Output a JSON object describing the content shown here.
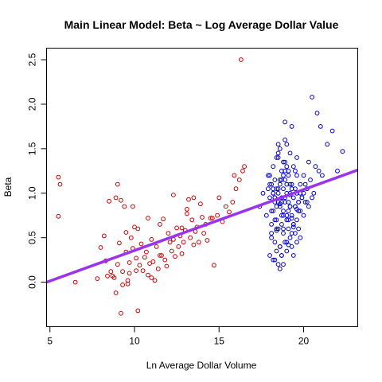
{
  "chart_data": {
    "type": "scatter",
    "title": "Main Linear Model: Beta ~ Log Average Dollar Value",
    "xlabel": "Ln Average Dollar Volume",
    "ylabel": "Beta",
    "xlim": [
      4.8,
      23.2
    ],
    "ylim": [
      -0.5,
      2.63
    ],
    "xticks": [
      5,
      10,
      15,
      20
    ],
    "yticks": [
      0.0,
      0.5,
      1.0,
      1.5,
      2.0,
      2.5
    ],
    "ytick_labels": [
      "0.0",
      "0.5",
      "1.0",
      "1.5",
      "2.0",
      "2.5"
    ],
    "grid": false,
    "legend": "none",
    "series": [
      {
        "color": "#cc0000",
        "marker": "open-circle",
        "x": [
          5.5,
          5.6,
          5.5,
          6.5,
          7.8,
          8.0,
          8.2,
          8.3,
          8.5,
          8.6,
          8.7,
          8.8,
          8.9,
          9.0,
          9.0,
          9.1,
          9.2,
          9.3,
          9.3,
          9.4,
          9.5,
          9.5,
          9.6,
          9.7,
          9.8,
          9.9,
          10.0,
          10.1,
          10.2,
          10.3,
          10.4,
          10.5,
          10.6,
          10.7,
          10.8,
          10.9,
          11.0,
          11.1,
          11.2,
          11.3,
          11.4,
          11.5,
          11.6,
          11.7,
          11.8,
          11.9,
          12.0,
          12.1,
          12.2,
          12.3,
          12.4,
          12.5,
          12.6,
          12.7,
          12.8,
          12.9,
          13.0,
          13.1,
          13.2,
          13.3,
          13.4,
          13.5,
          13.6,
          13.7,
          13.8,
          13.9,
          14.0,
          14.1,
          14.2,
          14.3,
          14.5,
          14.7,
          14.9,
          15.0,
          15.2,
          15.4,
          15.6,
          15.8,
          16.0,
          16.2,
          16.3,
          16.5,
          8.9,
          9.6,
          10.2,
          11.0,
          12.3,
          13.1,
          14.6,
          9.2,
          10.8,
          12.8,
          9.9,
          15.9,
          16.4,
          13.5,
          11.5,
          10.1,
          8.4,
          9.7
        ],
        "y": [
          1.18,
          1.1,
          0.74,
          0.0,
          0.04,
          0.39,
          0.52,
          0.24,
          0.91,
          0.12,
          0.07,
          0.05,
          0.95,
          1.1,
          0.2,
          0.44,
          -0.35,
          -0.03,
          0.12,
          0.85,
          0.34,
          0.56,
          0.02,
          0.1,
          0.5,
          0.38,
          0.62,
          0.27,
          0.6,
          0.19,
          0.43,
          0.13,
          0.28,
          0.34,
          0.08,
          0.21,
          0.48,
          0.23,
          0.02,
          0.4,
          0.15,
          0.65,
          0.3,
          0.71,
          0.25,
          0.18,
          0.55,
          0.45,
          0.35,
          0.48,
          0.29,
          0.61,
          0.4,
          0.52,
          0.32,
          0.45,
          0.58,
          0.77,
          0.93,
          0.5,
          0.7,
          0.42,
          0.57,
          0.62,
          0.45,
          0.88,
          0.73,
          0.55,
          0.65,
          0.47,
          0.72,
          0.19,
          0.75,
          0.95,
          0.68,
          0.85,
          0.79,
          0.9,
          1.05,
          1.15,
          2.5,
          1.3,
          -0.12,
          -0.02,
          -0.32,
          0.05,
          0.98,
          0.82,
          0.72,
          0.92,
          0.72,
          0.61,
          0.85,
          1.2,
          1.25,
          0.95,
          0.3,
          0.13,
          0.07,
          0.22
        ]
      },
      {
        "color": "#0000cc",
        "marker": "open-circle",
        "x": [
          17.4,
          17.6,
          17.8,
          17.9,
          18.0,
          18.0,
          18.1,
          18.1,
          18.2,
          18.2,
          18.2,
          18.3,
          18.3,
          18.3,
          18.4,
          18.4,
          18.4,
          18.5,
          18.5,
          18.5,
          18.5,
          18.6,
          18.6,
          18.6,
          18.6,
          18.7,
          18.7,
          18.7,
          18.7,
          18.8,
          18.8,
          18.8,
          18.8,
          18.9,
          18.9,
          18.9,
          18.9,
          19.0,
          19.0,
          19.0,
          19.0,
          19.1,
          19.1,
          19.1,
          19.2,
          19.2,
          19.2,
          19.3,
          19.3,
          19.3,
          19.4,
          19.4,
          19.5,
          19.5,
          19.6,
          19.6,
          19.7,
          19.7,
          19.8,
          19.8,
          19.9,
          20.0,
          20.0,
          20.1,
          20.2,
          20.3,
          20.4,
          20.5,
          20.7,
          20.9,
          21.1,
          21.4,
          21.7,
          22.0,
          22.3,
          18.0,
          18.1,
          18.3,
          18.4,
          18.5,
          18.6,
          18.7,
          18.8,
          18.9,
          19.0,
          19.1,
          19.2,
          19.3,
          19.4,
          19.5,
          19.6,
          19.7,
          19.8,
          18.2,
          18.4,
          18.6,
          18.8,
          19.0,
          19.2,
          19.4,
          19.6,
          19.8,
          20.0,
          20.2,
          18.3,
          18.5,
          18.7,
          18.9,
          19.1,
          19.3,
          19.5,
          17.9,
          18.1,
          18.3,
          18.5,
          18.7,
          18.9,
          19.1,
          19.3,
          19.5,
          19.7,
          19.9,
          20.1,
          20.3,
          18.0,
          18.2,
          18.4,
          18.6,
          18.8,
          19.0,
          19.2,
          19.4,
          19.6,
          18.1,
          18.3,
          18.5,
          18.7,
          18.9,
          19.1,
          19.3,
          18.2,
          18.6,
          19.0,
          19.4,
          18.4,
          18.8,
          19.2,
          19.6,
          20.5,
          20.8,
          21.0,
          20.6
        ],
        "y": [
          0.85,
          1.0,
          0.75,
          1.2,
          0.3,
          0.95,
          0.5,
          1.1,
          0.25,
          0.8,
          1.3,
          0.45,
          0.9,
          1.15,
          0.35,
          0.7,
          1.05,
          0.2,
          0.6,
          1.0,
          1.4,
          0.4,
          0.85,
          1.1,
          1.5,
          0.3,
          0.75,
          0.95,
          1.25,
          0.55,
          0.8,
          1.05,
          1.35,
          0.45,
          0.9,
          1.15,
          1.6,
          0.35,
          0.7,
          1.0,
          1.3,
          0.6,
          0.9,
          1.2,
          0.5,
          0.85,
          1.1,
          0.4,
          0.75,
          1.05,
          0.65,
          0.95,
          0.55,
          0.85,
          0.7,
          1.0,
          0.6,
          0.9,
          0.8,
          1.1,
          0.95,
          0.75,
          1.2,
          0.9,
          1.05,
          0.85,
          1.15,
          0.95,
          1.3,
          1.25,
          1.2,
          1.55,
          1.7,
          1.25,
          1.47,
          1.1,
          0.65,
          0.25,
          0.85,
          1.05,
          0.15,
          0.9,
          0.2,
          1.25,
          0.45,
          0.8,
          1.0,
          0.55,
          0.3,
          1.05,
          0.45,
          0.9,
          1.0,
          1.05,
          0.58,
          1.15,
          1.2,
          0.75,
          1.45,
          0.62,
          1.4,
          0.5,
          1.0,
          0.9,
          0.95,
          1.45,
          0.3,
          1.8,
          0.7,
          1.75,
          0.85,
          1.05,
          0.55,
          0.95,
          1.55,
          0.65,
          1.35,
          0.42,
          1.1,
          1.25,
          0.8,
          0.95,
          1.1,
          1.35,
          1.2,
          1.0,
          0.6,
          0.4,
          0.75,
          1.55,
          0.85,
          0.65,
          1.2,
          0.8,
          0.7,
          0.9,
          1.15,
          0.95,
          1.25,
          0.72,
          1.0,
          0.88,
          1.1,
          1.3,
          1.4,
          0.6,
          0.98,
          0.82,
          2.08,
          1.9,
          1.75,
          1.0
        ]
      }
    ],
    "regression_line": {
      "color": "#9933ee",
      "x": [
        4.8,
        23.2
      ],
      "y": [
        0.0,
        1.26
      ]
    }
  }
}
